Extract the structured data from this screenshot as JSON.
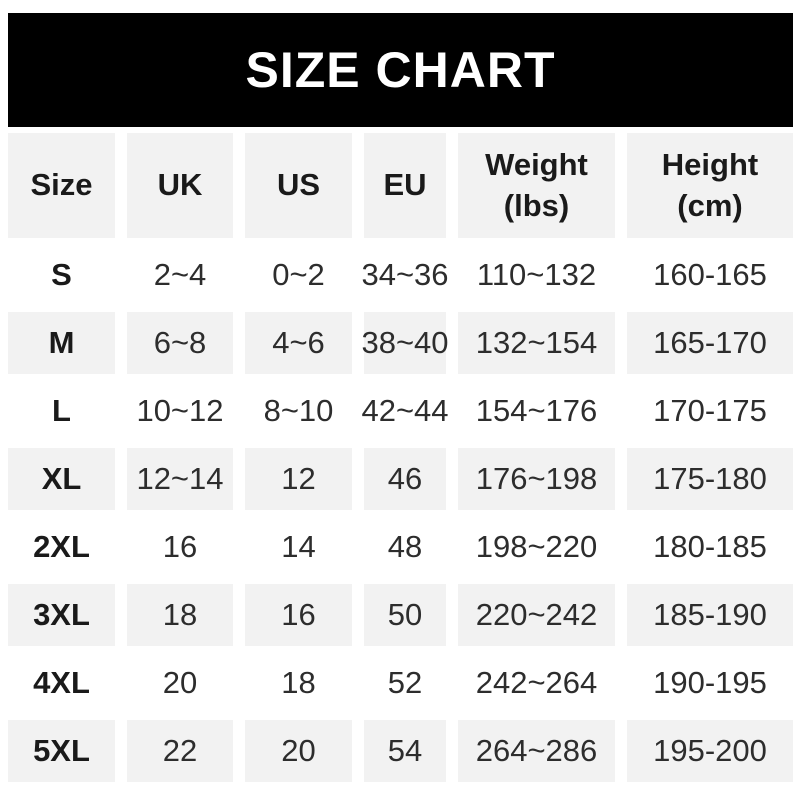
{
  "banner": {
    "title": "SIZE CHART"
  },
  "colors": {
    "banner_bg": "#000000",
    "banner_text": "#ffffff",
    "row_stripe": "#f2f2f2",
    "text_dark": "#1a1a1a",
    "text_body": "#2d2d2d"
  },
  "header": {
    "size": "Size",
    "uk": "UK",
    "us": "US",
    "eu": "EU",
    "weight": "Weight\n(lbs)",
    "height": "Height\n(cm)"
  },
  "chart_data": {
    "type": "table",
    "title": "SIZE CHART",
    "columns": [
      "Size",
      "UK",
      "US",
      "EU",
      "Weight (lbs)",
      "Height (cm)"
    ],
    "rows": [
      {
        "size": "S",
        "uk": "2~4",
        "us": "0~2",
        "eu": "34~36",
        "weight": "110~132",
        "height": "160-165"
      },
      {
        "size": "M",
        "uk": "6~8",
        "us": "4~6",
        "eu": "38~40",
        "weight": "132~154",
        "height": "165-170"
      },
      {
        "size": "L",
        "uk": "10~12",
        "us": "8~10",
        "eu": "42~44",
        "weight": "154~176",
        "height": "170-175"
      },
      {
        "size": "XL",
        "uk": "12~14",
        "us": "12",
        "eu": "46",
        "weight": "176~198",
        "height": "175-180"
      },
      {
        "size": "2XL",
        "uk": "16",
        "us": "14",
        "eu": "48",
        "weight": "198~220",
        "height": "180-185"
      },
      {
        "size": "3XL",
        "uk": "18",
        "us": "16",
        "eu": "50",
        "weight": "220~242",
        "height": "185-190"
      },
      {
        "size": "4XL",
        "uk": "20",
        "us": "18",
        "eu": "52",
        "weight": "242~264",
        "height": "190-195"
      },
      {
        "size": "5XL",
        "uk": "22",
        "us": "20",
        "eu": "54",
        "weight": "264~286",
        "height": "195-200"
      }
    ]
  }
}
